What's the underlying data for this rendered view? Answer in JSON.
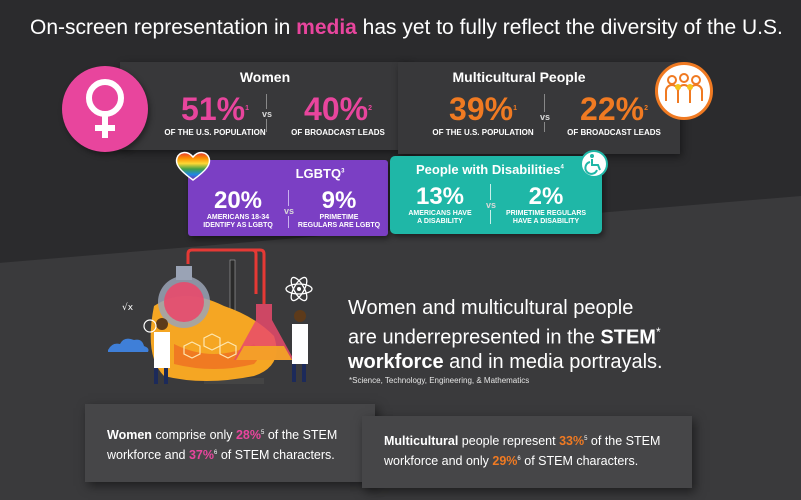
{
  "headline": {
    "before": "On-screen representation in ",
    "highlight": "media",
    "after": " has yet to fully reflect the diversity of the U.S."
  },
  "women": {
    "title": "Women",
    "stat1": {
      "value": "51%",
      "note": "1",
      "caption": "OF THE U.S. POPULATION"
    },
    "vs": "vs",
    "stat2": {
      "value": "40%",
      "note": "2",
      "caption": "OF BROADCAST LEADS"
    }
  },
  "multicultural": {
    "title": "Multicultural People",
    "stat1": {
      "value": "39%",
      "note": "1",
      "caption": "OF THE U.S. POPULATION"
    },
    "vs": "vs",
    "stat2": {
      "value": "22%",
      "note": "2",
      "caption": "OF BROADCAST LEADS"
    }
  },
  "lgbtq": {
    "title": "LGBTQ",
    "title_note": "3",
    "stat1": {
      "value": "20%",
      "caption_line1": "AMERICANS 18-34",
      "caption_line2": "IDENTIFY AS LGBTQ"
    },
    "vs": "vs",
    "stat2": {
      "value": "9%",
      "caption_line1": "PRIMETIME",
      "caption_line2": "REGULARS ARE LGBTQ"
    }
  },
  "disabilities": {
    "title": "People with Disabilities",
    "title_note": "4",
    "stat1": {
      "value": "13%",
      "caption_line1": "AMERICANS HAVE",
      "caption_line2": "A DISABILITY"
    },
    "vs": "vs",
    "stat2": {
      "value": "2%",
      "caption_line1": "PRIMETIME REGULARS",
      "caption_line2": "HAVE A DISABILITY"
    }
  },
  "stem": {
    "line1": "Women and multicultural people",
    "line2_before": "are underrepresented in the ",
    "line2_bold": "STEM",
    "line2_mark": "*",
    "line3_bold": "workforce",
    "line3_after": " and in media portrayals.",
    "footnote": "*Science, Technology, Engineering, & Mathematics"
  },
  "card_women": {
    "lead": "Women",
    "text1": " comprise only ",
    "pct1": "28%",
    "note1": "5",
    "text2": " of the STEM",
    "text3": "workforce and ",
    "pct2": "37%",
    "note2": "6",
    "text4": " of STEM characters."
  },
  "card_multi": {
    "lead": "Multicultural",
    "text1": " people represent ",
    "pct1": "33%",
    "note1": "5",
    "text2": " of the STEM",
    "text3": "workforce and only ",
    "pct2": "29%",
    "note2": "6",
    "text4": " of STEM characters."
  },
  "icons": [
    "female-symbol-icon",
    "people-group-icon",
    "rainbow-heart-icon",
    "wheelchair-icon",
    "science-lab-illustration",
    "atom-icon"
  ],
  "colors": {
    "pink": "#e8459d",
    "orange": "#f07a22",
    "purple": "#7b3fc4",
    "teal": "#1fb7a7",
    "background": "#2b2b2d"
  }
}
